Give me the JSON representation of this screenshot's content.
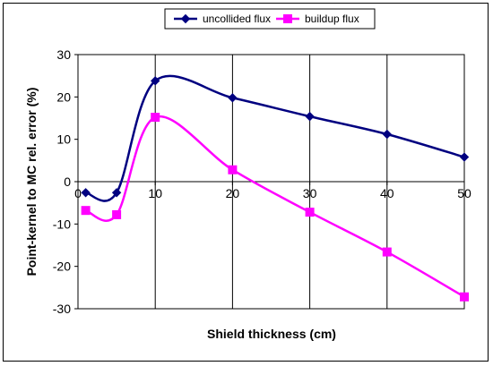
{
  "chart_data": {
    "type": "line",
    "title": "",
    "xlabel": "Shield thickness (cm)",
    "ylabel": "Point-kernel to MC rel. error (%)",
    "xlim": [
      0,
      50
    ],
    "ylim": [
      -30,
      30
    ],
    "xticks": [
      0,
      10,
      20,
      30,
      40,
      50
    ],
    "yticks": [
      -30,
      -20,
      -10,
      0,
      10,
      20,
      30
    ],
    "grid": {
      "x": true,
      "y": false
    },
    "legend_position": "top",
    "smoothed": true,
    "series": [
      {
        "name": "uncollided flux",
        "color": "#000080",
        "marker": "diamond",
        "x": [
          1,
          5,
          10,
          20,
          30,
          40,
          50
        ],
        "y": [
          -2.6,
          -2.6,
          23.8,
          19.8,
          15.4,
          11.2,
          5.8
        ]
      },
      {
        "name": "buildup flux",
        "color": "#FF00FF",
        "marker": "square",
        "x": [
          1,
          5,
          10,
          20,
          30,
          40,
          50
        ],
        "y": [
          -6.8,
          -7.8,
          15.2,
          2.8,
          -7.2,
          -16.6,
          -27.2
        ]
      }
    ]
  }
}
